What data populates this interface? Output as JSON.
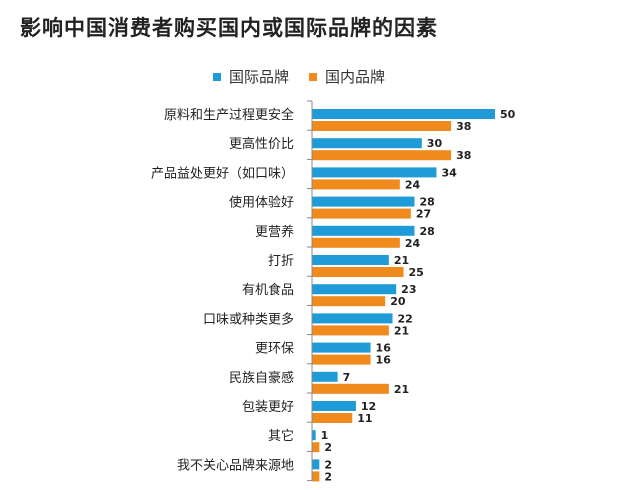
{
  "chart_data": {
    "type": "bar",
    "orientation": "horizontal",
    "title": "影响中国消费者购买国内或国际品牌的因素",
    "categories": [
      "原料和生产过程更安全",
      "更高性价比",
      "产品益处更好（如口味）",
      "使用体验好",
      "更营养",
      "打折",
      "有机食品",
      "口味或种类更多",
      "更环保",
      "民族自豪感",
      "包装更好",
      "其它",
      "我不关心品牌来源地"
    ],
    "series": [
      {
        "name": "国际品牌",
        "color": "#1f9bd7",
        "values": [
          50,
          30,
          34,
          28,
          28,
          21,
          23,
          22,
          16,
          7,
          12,
          1,
          2
        ]
      },
      {
        "name": "国内品牌",
        "color": "#f08a1c",
        "values": [
          38,
          38,
          24,
          27,
          24,
          25,
          20,
          21,
          16,
          21,
          11,
          2,
          2
        ]
      }
    ],
    "xlim": [
      0,
      50
    ],
    "legend_position": "top",
    "grid": false,
    "xlabel": "",
    "ylabel": ""
  }
}
